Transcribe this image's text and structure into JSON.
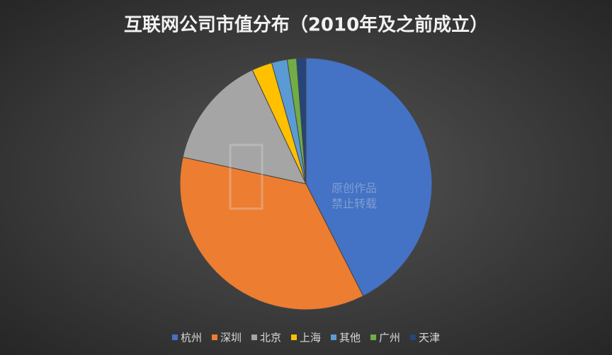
{
  "chart_data": {
    "type": "pie",
    "title": "互联网公司市值分布（2010年及之前成立）",
    "categories": [
      "杭州",
      "深圳",
      "北京",
      "上海",
      "其他",
      "广州",
      "天津"
    ],
    "values": [
      42.5,
      35.9,
      14.6,
      2.6,
      2.0,
      1.2,
      1.2
    ],
    "colors": [
      "#4472c4",
      "#ed7d31",
      "#a5a5a5",
      "#ffc000",
      "#5b9bd5",
      "#70ad47",
      "#264478"
    ],
    "legend": "bottom"
  },
  "watermark": [
    "原创作品",
    "禁止转载"
  ]
}
